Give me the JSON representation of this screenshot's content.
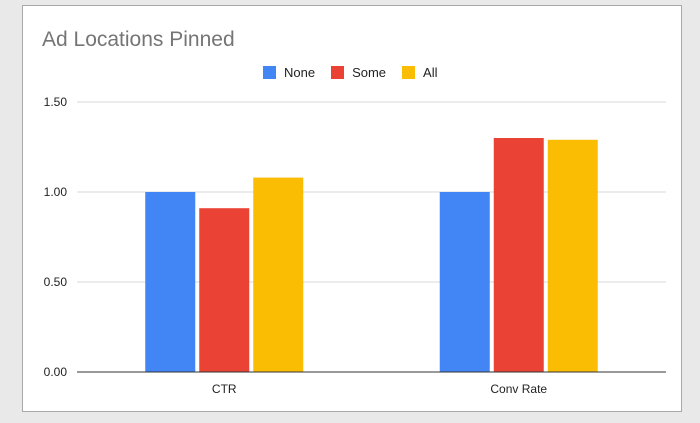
{
  "chart_data": {
    "type": "bar",
    "title": "Ad Locations Pinned",
    "xlabel": "",
    "ylabel": "",
    "categories": [
      "CTR",
      "Conv Rate"
    ],
    "series": [
      {
        "name": "None",
        "color": "#4285f4",
        "values": [
          1.0,
          1.0
        ]
      },
      {
        "name": "Some",
        "color": "#ea4335",
        "values": [
          0.91,
          1.3
        ]
      },
      {
        "name": "All",
        "color": "#fbbc04",
        "values": [
          1.08,
          1.29
        ]
      }
    ],
    "ylim": [
      0,
      1.5
    ],
    "yticks": [
      "0.00",
      "0.50",
      "1.00",
      "1.50"
    ],
    "legend_position": "top",
    "grid": true
  }
}
